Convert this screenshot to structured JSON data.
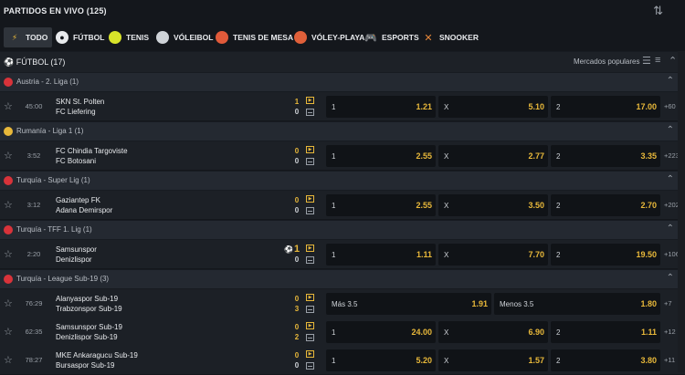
{
  "header": {
    "title": "PARTIDOS EN VIVO (125)",
    "sort_icon": "sort-arrows-icon"
  },
  "tabs": [
    {
      "label": "TODO",
      "icon": "lightning-icon",
      "color": "#e8b83a",
      "active": true
    },
    {
      "label": "FÚTBOL",
      "icon": "soccer-ball-icon",
      "color": "#e8eaed"
    },
    {
      "label": "TENIS",
      "icon": "tennis-ball-icon",
      "color": "#d8e32a"
    },
    {
      "label": "VÓLEIBOL",
      "icon": "volleyball-icon",
      "color": "#cfd3d8"
    },
    {
      "label": "TENIS DE MESA",
      "icon": "table-tennis-icon",
      "color": "#e05a3a"
    },
    {
      "label": "VÓLEY-PLAYA",
      "icon": "beach-volleyball-icon",
      "color": "#e0603a"
    },
    {
      "label": "ESPORTS",
      "icon": "gamepad-icon",
      "color": "#cfd3d8"
    },
    {
      "label": "SNOOKER",
      "icon": "snooker-icon",
      "color": "#e8883a"
    }
  ],
  "section": {
    "title": "FÚTBOL (17)",
    "markets_label": "Mercados populares"
  },
  "leagues": [
    {
      "name": "Austria - 2. Liga (1)",
      "flag_color": "#d8333a",
      "matches": [
        {
          "time": "45:00",
          "home": "SKN St. Polten",
          "away": "FC Liefering",
          "score_home": "1",
          "score_away": "0",
          "odds": [
            {
              "label": "1",
              "value": "1.21"
            },
            {
              "label": "X",
              "value": "5.10"
            },
            {
              "label": "2",
              "value": "17.00"
            }
          ],
          "more": "+60"
        }
      ]
    },
    {
      "name": "Rumanía - Liga 1 (1)",
      "flag_color": "#e8b83a",
      "matches": [
        {
          "time": "3:52",
          "home": "FC Chindia Targoviste",
          "away": "FC Botosani",
          "score_home": "0",
          "score_away": "0",
          "odds": [
            {
              "label": "1",
              "value": "2.55"
            },
            {
              "label": "X",
              "value": "2.77"
            },
            {
              "label": "2",
              "value": "3.35"
            }
          ],
          "more": "+223"
        }
      ]
    },
    {
      "name": "Turquía - Super Lig (1)",
      "flag_color": "#d8333a",
      "matches": [
        {
          "time": "3:12",
          "home": "Gaziantep FK",
          "away": "Adana Demirspor",
          "score_home": "0",
          "score_away": "0",
          "odds": [
            {
              "label": "1",
              "value": "2.55"
            },
            {
              "label": "X",
              "value": "3.50"
            },
            {
              "label": "2",
              "value": "2.70"
            }
          ],
          "more": "+202"
        }
      ]
    },
    {
      "name": "Turquía - TFF 1. Lig (1)",
      "flag_color": "#d8333a",
      "matches": [
        {
          "time": "2:20",
          "home": "Samsunspor",
          "away": "Denizlispor",
          "score_home": "1",
          "score_away": "0",
          "odds": [
            {
              "label": "1",
              "value": "1.11"
            },
            {
              "label": "X",
              "value": "7.70"
            },
            {
              "label": "2",
              "value": "19.50"
            }
          ],
          "more": "+106"
        }
      ]
    },
    {
      "name": "Turquía - League Sub-19 (3)",
      "flag_color": "#d8333a",
      "matches": [
        {
          "time": "76:29",
          "home": "Alanyaspor Sub-19",
          "away": "Trabzonspor Sub-19",
          "score_home": "0",
          "score_away": "3",
          "odds": [
            {
              "label": "Más 3.5",
              "value": "1.91"
            },
            {
              "label": "Menos 3.5",
              "value": "1.80"
            }
          ],
          "more": "+7"
        },
        {
          "time": "62:35",
          "home": "Samsunspor Sub-19",
          "away": "Denizlispor Sub-19",
          "score_home": "0",
          "score_away": "2",
          "odds": [
            {
              "label": "1",
              "value": "24.00"
            },
            {
              "label": "X",
              "value": "6.90"
            },
            {
              "label": "2",
              "value": "1.11"
            }
          ],
          "more": "+12"
        },
        {
          "time": "78:27",
          "home": "MKE Ankaragucu Sub-19",
          "away": "Bursaspor Sub-19",
          "score_home": "0",
          "score_away": "0",
          "odds": [
            {
              "label": "1",
              "value": "5.20"
            },
            {
              "label": "X",
              "value": "1.57"
            },
            {
              "label": "2",
              "value": "3.80"
            }
          ],
          "more": "+11"
        }
      ]
    }
  ]
}
